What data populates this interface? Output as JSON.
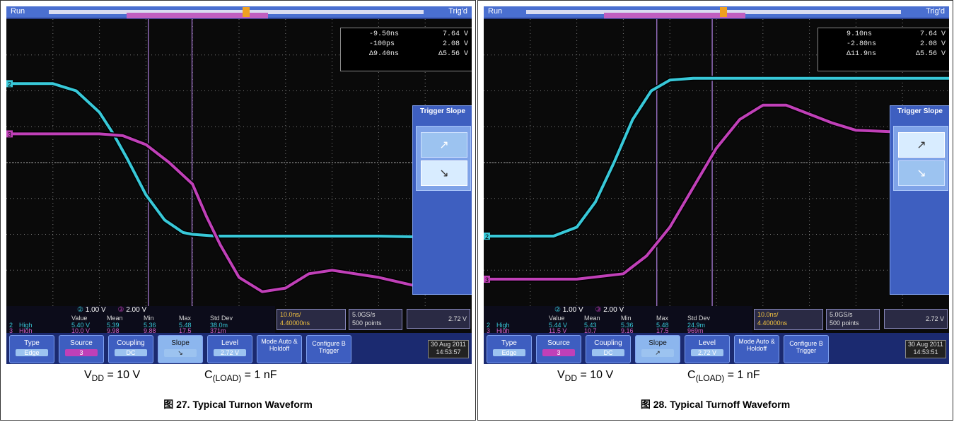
{
  "panels": [
    {
      "status": "Run",
      "trigger_state": "Trig'd",
      "cursor_readout": {
        "t1": "-9.50ns",
        "v1": "7.64 V",
        "t2": "-100ps",
        "v2": "2.08 V",
        "dt": "Δ9.40ns",
        "dv": "Δ5.56 V"
      },
      "trigger_menu": {
        "title": "Trigger Slope",
        "rising": "↗",
        "falling": "↘",
        "selected": "falling"
      },
      "channel_scale": {
        "ch2": "1.00 V",
        "ch3": "2.00 V"
      },
      "measure_headers": [
        "Value",
        "Mean",
        "Min",
        "Max",
        "Std Dev"
      ],
      "measurements": [
        {
          "label": "High",
          "ch": "2",
          "values": [
            "5.40 V",
            "5.39",
            "5.36",
            "5.48",
            "38.0m"
          ]
        },
        {
          "label": "High",
          "ch": "3",
          "values": [
            "10.0 V",
            "9.98",
            "9.88",
            "17.5",
            "371m"
          ]
        }
      ],
      "timebase": "10.0ns/",
      "trigger_time": "4.40000ns",
      "sample_rate": "5.0GS/s",
      "record_length": "500 points",
      "trig_level_readout": "2.72 V",
      "buttons": [
        {
          "top": "Type",
          "bottom": "Edge"
        },
        {
          "top": "Source",
          "bottom": "3"
        },
        {
          "top": "Coupling",
          "bottom": "DC"
        },
        {
          "top": "Slope",
          "bottom": "↘"
        },
        {
          "top": "Level",
          "bottom": "2.72 V"
        },
        {
          "top": "Mode Auto & Holdoff",
          "bottom": ""
        },
        {
          "top": "Configure B Trigger",
          "bottom": ""
        }
      ],
      "date": "30 Aug 2011",
      "time": "14:53:57",
      "condition_vdd": "V",
      "condition_vdd_sub": "DD",
      "condition_vdd_val": " = 10 V",
      "condition_load": "C",
      "condition_load_sub": "(LOAD)",
      "condition_load_val": " = 1 nF",
      "caption": "图 27. Typical Turnon Waveform"
    },
    {
      "status": "Run",
      "trigger_state": "Trig'd",
      "cursor_readout": {
        "t1": "9.10ns",
        "v1": "7.64 V",
        "t2": "-2.80ns",
        "v2": "2.08 V",
        "dt": "Δ11.9ns",
        "dv": "Δ5.56 V"
      },
      "trigger_menu": {
        "title": "Trigger Slope",
        "rising": "↗",
        "falling": "↘",
        "selected": "rising"
      },
      "channel_scale": {
        "ch2": "1.00 V",
        "ch3": "2.00 V"
      },
      "measure_headers": [
        "Value",
        "Mean",
        "Min",
        "Max",
        "Std Dev"
      ],
      "measurements": [
        {
          "label": "High",
          "ch": "2",
          "values": [
            "5.44 V",
            "5.43",
            "5.36",
            "5.48",
            "24.9m"
          ]
        },
        {
          "label": "High",
          "ch": "3",
          "values": [
            "11.5 V",
            "10.7",
            "9.16",
            "17.5",
            "969m"
          ]
        }
      ],
      "timebase": "10.0ns/",
      "trigger_time": "4.40000ns",
      "sample_rate": "5.0GS/s",
      "record_length": "500 points",
      "trig_level_readout": "2.72 V",
      "buttons": [
        {
          "top": "Type",
          "bottom": "Edge"
        },
        {
          "top": "Source",
          "bottom": "3"
        },
        {
          "top": "Coupling",
          "bottom": "DC"
        },
        {
          "top": "Slope",
          "bottom": "↗"
        },
        {
          "top": "Level",
          "bottom": "2.72 V"
        },
        {
          "top": "Mode Auto & Holdoff",
          "bottom": ""
        },
        {
          "top": "Configure B Trigger",
          "bottom": ""
        }
      ],
      "date": "30 Aug 2011",
      "time": "14:53:51",
      "condition_vdd": "V",
      "condition_vdd_sub": "DD",
      "condition_vdd_val": " = 10 V",
      "condition_load": "C",
      "condition_load_sub": "(LOAD)",
      "condition_load_val": " = 1 nF",
      "caption": "图 28. Typical Turnoff Waveform"
    }
  ],
  "colors": {
    "ch2": "#38c8d8",
    "ch3": "#c040b8",
    "grid": "#7a7a7a",
    "cursor": "#b080e0"
  },
  "chart_data": [
    {
      "type": "line",
      "x_unit": "ns",
      "x_per_div": 10,
      "xlim": [
        -40,
        60
      ],
      "series": [
        {
          "name": "2",
          "ylim_div": [
            -4,
            4
          ],
          "x": [
            -40,
            -30,
            -25,
            -20,
            -17,
            -14,
            -10,
            -6,
            -2,
            0,
            5,
            10,
            20,
            40,
            60
          ],
          "y_div": [
            2.2,
            2.2,
            2.0,
            1.4,
            0.8,
            0.1,
            -0.9,
            -1.6,
            -1.95,
            -2.0,
            -2.05,
            -2.05,
            -2.05,
            -2.05,
            -2.1
          ]
        },
        {
          "name": "3",
          "ylim_div": [
            -4,
            4
          ],
          "x": [
            -40,
            -20,
            -15,
            -10,
            -5,
            0,
            3,
            6,
            10,
            15,
            20,
            25,
            30,
            40,
            50,
            60
          ],
          "y_div": [
            0.8,
            0.8,
            0.75,
            0.5,
            0,
            -0.6,
            -1.5,
            -2.3,
            -3.2,
            -3.6,
            -3.5,
            -3.1,
            -3.0,
            -3.2,
            -3.5,
            -3.55
          ]
        }
      ],
      "cursors_x": [
        -9.5,
        -0.1
      ]
    },
    {
      "type": "line",
      "x_unit": "ns",
      "x_per_div": 10,
      "xlim": [
        -40,
        60
      ],
      "series": [
        {
          "name": "2",
          "ylim_div": [
            -4,
            4
          ],
          "x": [
            -40,
            -25,
            -20,
            -16,
            -12,
            -8,
            -4,
            0,
            5,
            10,
            20,
            40,
            60
          ],
          "y_div": [
            -2.05,
            -2.05,
            -1.8,
            -1.1,
            0,
            1.2,
            2.0,
            2.3,
            2.35,
            2.35,
            2.35,
            2.35,
            2.35
          ]
        },
        {
          "name": "3",
          "ylim_div": [
            -4,
            4
          ],
          "x": [
            -40,
            -20,
            -10,
            -5,
            0,
            5,
            10,
            15,
            20,
            25,
            30,
            35,
            40,
            50,
            60
          ],
          "y_div": [
            -3.25,
            -3.25,
            -3.1,
            -2.6,
            -1.8,
            -0.7,
            0.4,
            1.2,
            1.6,
            1.6,
            1.35,
            1.1,
            0.9,
            0.85,
            0.8
          ]
        }
      ],
      "cursors_x": [
        9.1,
        -2.8
      ]
    }
  ]
}
